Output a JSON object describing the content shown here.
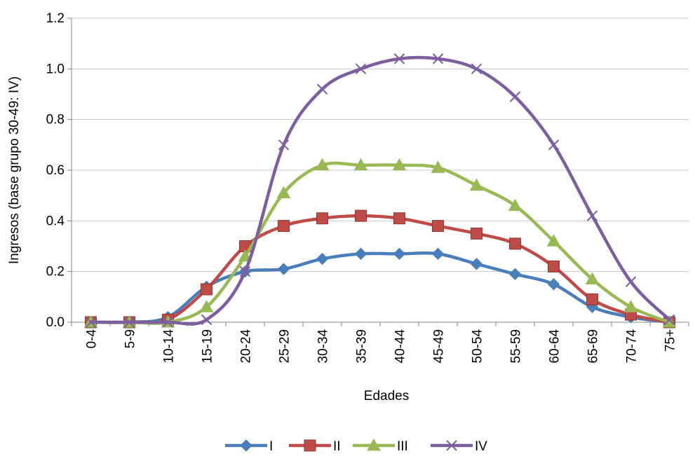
{
  "chart_data": {
    "type": "line",
    "xlabel": "Edades",
    "ylabel": "Ingresos (base grupo 30-49: IV)",
    "categories": [
      "0-4",
      "5-9",
      "10-14",
      "15-19",
      "20-24",
      "25-29",
      "30-34",
      "35-39",
      "40-44",
      "45-49",
      "50-54",
      "55-59",
      "60-64",
      "65-69",
      "70-74",
      "75+"
    ],
    "ylim": [
      0,
      1.2
    ],
    "yticks": [
      "0.0",
      "0.2",
      "0.4",
      "0.6",
      "0.8",
      "1.0",
      "1.2"
    ],
    "grid": "horizontal",
    "legend": "bottom",
    "series": [
      {
        "name": "I",
        "color": "#4a7ebb",
        "marker": "diamond",
        "values": [
          0,
          0,
          0.02,
          0.14,
          0.2,
          0.21,
          0.25,
          0.27,
          0.27,
          0.27,
          0.23,
          0.19,
          0.15,
          0.06,
          0.02,
          0
        ]
      },
      {
        "name": "II",
        "color": "#be4b48",
        "marker": "square",
        "values": [
          0,
          0,
          0.01,
          0.13,
          0.3,
          0.38,
          0.41,
          0.42,
          0.41,
          0.38,
          0.35,
          0.31,
          0.22,
          0.09,
          0.03,
          0
        ]
      },
      {
        "name": "III",
        "color": "#98b954",
        "marker": "triangle",
        "values": [
          0,
          0,
          0,
          0.06,
          0.26,
          0.51,
          0.62,
          0.62,
          0.62,
          0.61,
          0.54,
          0.46,
          0.32,
          0.17,
          0.06,
          0
        ]
      },
      {
        "name": "IV",
        "color": "#7d5fa0",
        "marker": "x",
        "values": [
          0,
          0,
          0,
          0.01,
          0.2,
          0.7,
          0.92,
          1.0,
          1.04,
          1.04,
          1.0,
          0.89,
          0.7,
          0.42,
          0.16,
          0.01
        ]
      }
    ]
  }
}
